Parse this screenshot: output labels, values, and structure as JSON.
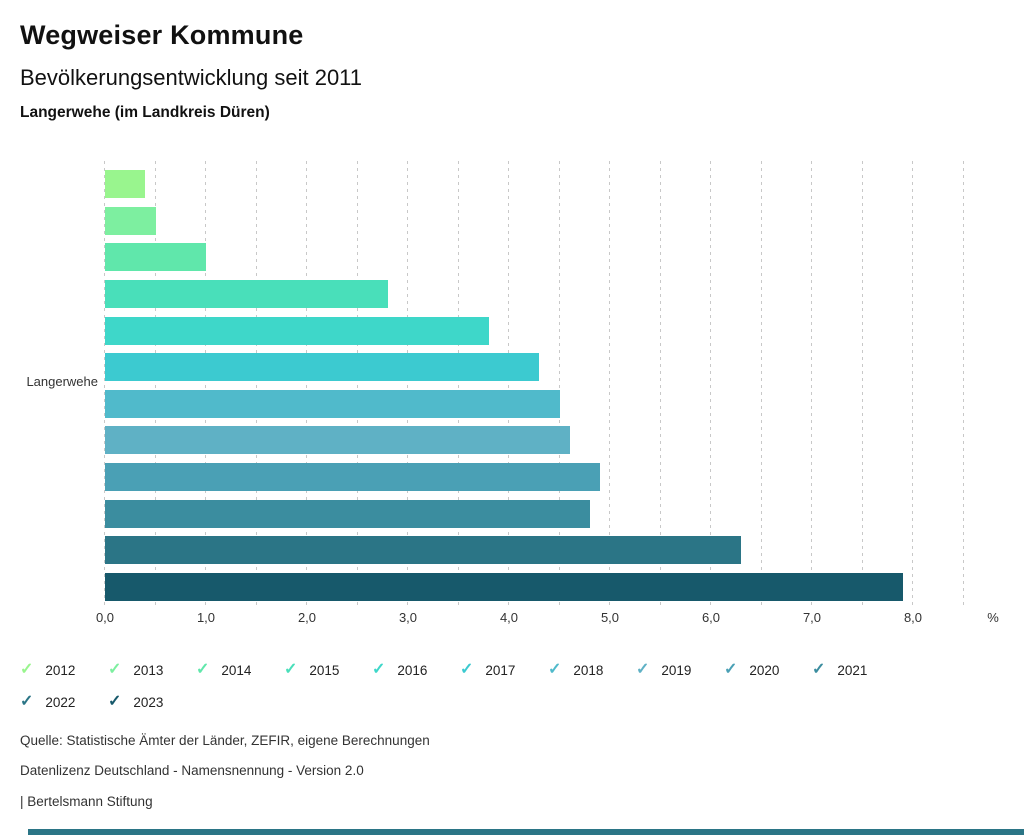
{
  "header": {
    "title": "Wegweiser Kommune",
    "subtitle": "Bevölkerungsentwicklung seit 2011",
    "region": "Langerwehe (im Landkreis Düren)"
  },
  "chart_data": {
    "type": "bar",
    "orientation": "horizontal",
    "category": "Langerwehe",
    "unit": "%",
    "series": [
      {
        "year": "2012",
        "value": 0.4,
        "color": "#99F58E"
      },
      {
        "year": "2013",
        "value": 0.5,
        "color": "#7DEFA0"
      },
      {
        "year": "2014",
        "value": 1.0,
        "color": "#60E7AB"
      },
      {
        "year": "2015",
        "value": 2.8,
        "color": "#49DFBA"
      },
      {
        "year": "2016",
        "value": 3.8,
        "color": "#3ED7C9"
      },
      {
        "year": "2017",
        "value": 4.3,
        "color": "#3CCAD0"
      },
      {
        "year": "2018",
        "value": 4.5,
        "color": "#50BACB"
      },
      {
        "year": "2019",
        "value": 4.6,
        "color": "#5FB1C5"
      },
      {
        "year": "2020",
        "value": 4.9,
        "color": "#4AA0B5"
      },
      {
        "year": "2021",
        "value": 4.8,
        "color": "#3B8D9F"
      },
      {
        "year": "2022",
        "value": 6.3,
        "color": "#2B7586"
      },
      {
        "year": "2023",
        "value": 7.9,
        "color": "#17596B"
      }
    ],
    "xlim": [
      0,
      8.5
    ],
    "gridline_step": 0.5,
    "x_tick_labels": [
      "0,0",
      "1,0",
      "2,0",
      "3,0",
      "4,0",
      "5,0",
      "6,0",
      "7,0",
      "8,0"
    ],
    "x_tick_values": [
      0,
      1,
      2,
      3,
      4,
      5,
      6,
      7,
      8
    ],
    "grid": true,
    "legend_position": "bottom",
    "legend_icon": "check"
  },
  "footer": {
    "source": "Quelle: Statistische Ämter der Länder, ZEFIR, eigene Berechnungen",
    "license": "Datenlizenz Deutschland - Namensnennung - Version 2.0",
    "attribution": "| Bertelsmann Stiftung"
  }
}
